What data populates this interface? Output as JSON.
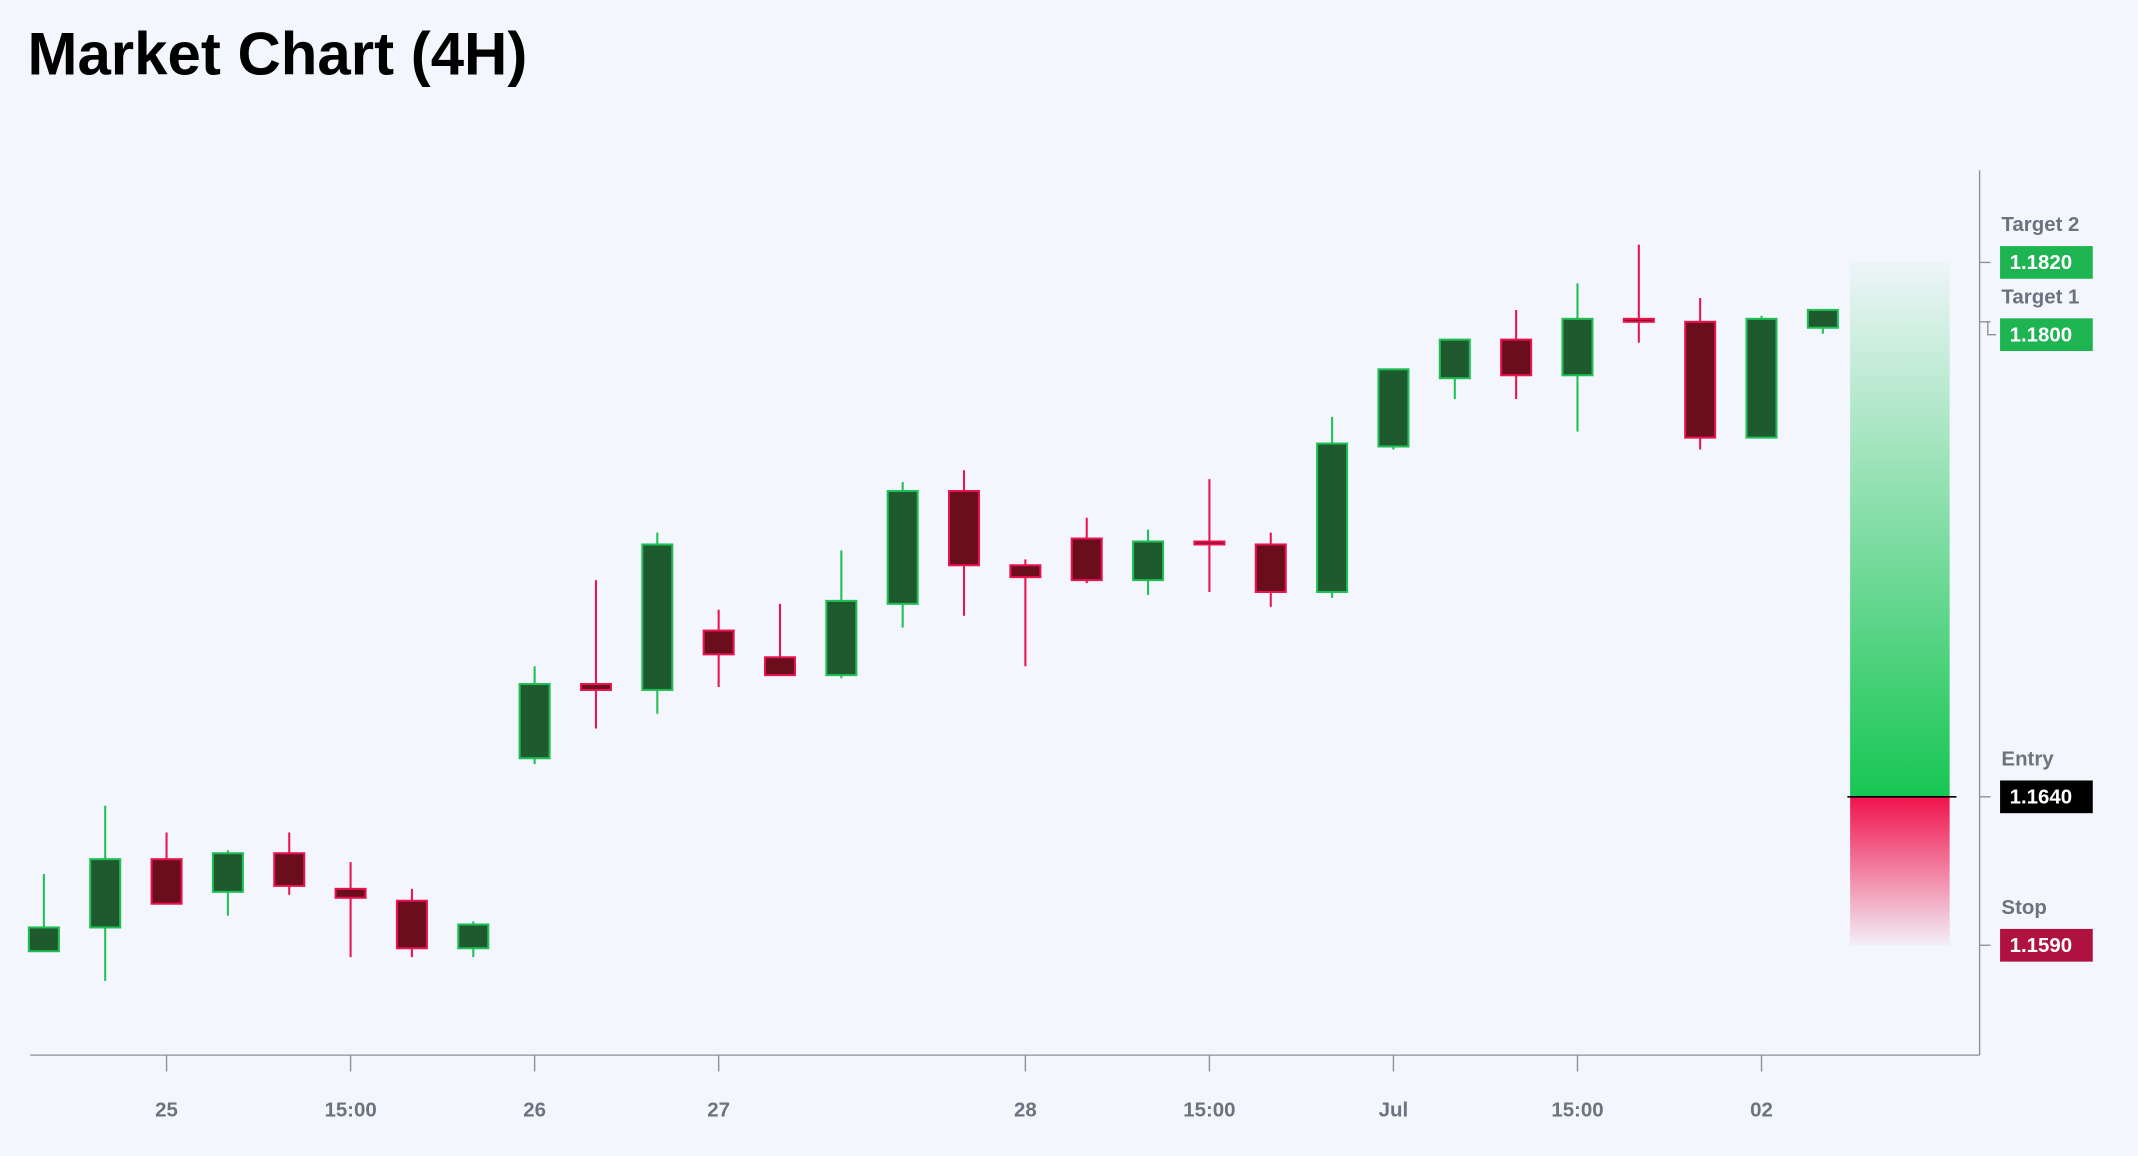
{
  "chart_data": {
    "type": "candlestick",
    "title": "Market Chart (4H)",
    "categories": [
      null,
      null,
      "25",
      null,
      null,
      "15:00",
      null,
      null,
      "26",
      null,
      null,
      "27",
      null,
      null,
      null,
      null,
      "28",
      null,
      null,
      "15:00",
      null,
      null,
      "Jul",
      null,
      null,
      "15:00",
      null,
      null,
      "02",
      null
    ],
    "open": [
      1.1588,
      1.1596,
      1.1619,
      1.1608,
      1.1621,
      1.1609,
      1.1605,
      1.1589,
      1.1653,
      1.1678,
      1.1676,
      1.1696,
      1.1687,
      1.1681,
      1.1705,
      1.1743,
      1.1718,
      1.1727,
      1.1713,
      1.1726,
      1.1725,
      1.1709,
      1.1758,
      1.1781,
      1.1794,
      1.1782,
      1.1801,
      1.18,
      1.1761,
      1.1798
    ],
    "high": [
      1.1614,
      1.1637,
      1.1628,
      1.1622,
      1.1628,
      1.1618,
      1.1609,
      1.1598,
      1.1684,
      1.1713,
      1.1729,
      1.1703,
      1.1705,
      1.1723,
      1.1746,
      1.175,
      1.172,
      1.1734,
      1.173,
      1.1747,
      1.1729,
      1.1768,
      1.1784,
      1.1794,
      1.1804,
      1.1813,
      1.1826,
      1.1808,
      1.1802,
      1.1804
    ],
    "low": [
      1.1588,
      1.1578,
      1.1604,
      1.16,
      1.1607,
      1.1586,
      1.1586,
      1.1586,
      1.1651,
      1.1663,
      1.1668,
      1.1677,
      1.1681,
      1.168,
      1.1697,
      1.1701,
      1.1684,
      1.1712,
      1.1708,
      1.1709,
      1.1704,
      1.1707,
      1.1757,
      1.1774,
      1.1774,
      1.1763,
      1.1793,
      1.1757,
      1.1761,
      1.1796
    ],
    "close": [
      1.1596,
      1.1619,
      1.1604,
      1.1621,
      1.161,
      1.1606,
      1.1589,
      1.1597,
      1.1678,
      1.1676,
      1.1725,
      1.1688,
      1.1681,
      1.1706,
      1.1743,
      1.1718,
      1.1714,
      1.1713,
      1.1726,
      1.1725,
      1.1709,
      1.1759,
      1.1784,
      1.1794,
      1.1782,
      1.1801,
      1.18,
      1.1761,
      1.1801,
      1.1804
    ],
    "up_color": "#1f5a2e",
    "up_border": "#1fbf55",
    "down_color": "#6a0d1c",
    "down_border": "#e8134f",
    "ylim": [
      1.1553,
      1.1851
    ],
    "levels": [
      {
        "name": "Target 2",
        "value": 1.182,
        "value_label": "1.1820",
        "color": "#1fb452"
      },
      {
        "name": "Target 1",
        "value": 1.18,
        "value_label": "1.1800",
        "color": "#1fb452"
      },
      {
        "name": "Entry",
        "value": 1.164,
        "value_label": "1.1640",
        "color": "#000000"
      },
      {
        "name": "Stop",
        "value": 1.159,
        "value_label": "1.1590",
        "color": "#b0123f"
      }
    ]
  }
}
